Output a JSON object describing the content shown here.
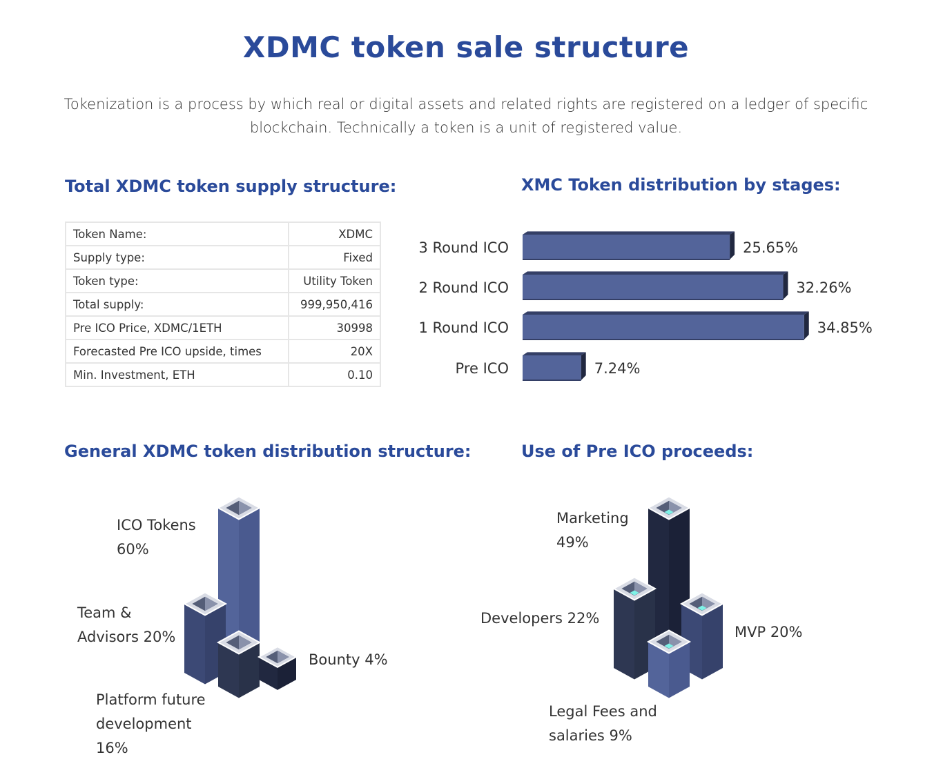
{
  "page": {
    "title": "XDMC token sale structure",
    "intro": "Tokenization is a process by which real or digital assets and related rights are registered on a ledger of specific blockchain. Technically a token is a unit of registered value."
  },
  "supply": {
    "heading": "Total XDMC token supply structure:",
    "rows": [
      {
        "key": "Token Name:",
        "value": "XDMC"
      },
      {
        "key": "Supply type:",
        "value": "Fixed"
      },
      {
        "key": "Token type:",
        "value": "Utility Token"
      },
      {
        "key": "Total supply:",
        "value": "999,950,416"
      },
      {
        "key": "Pre ICO Price, XDMC/1ETH",
        "value": "30998"
      },
      {
        "key": "Forecasted Pre ICO upside, times",
        "value": "20X"
      },
      {
        "key": "Min. Investment, ETH",
        "value": "0.10"
      }
    ]
  },
  "colors": {
    "heading": "#2a4a9a",
    "bar_face": "#53649a",
    "bar_dark": "#343f66",
    "mid_navy": "#3c4975",
    "dark_navy": "#2e3752",
    "darkest": "#212840",
    "cap_light": "#d9dce5",
    "accent_cyan": "#7ef2e6"
  },
  "chart_data": [
    {
      "type": "bar",
      "orientation": "horizontal",
      "title": "XMC Token distribution by stages:",
      "categories": [
        "3 Round ICO",
        "2 Round ICO",
        "1 Round ICO",
        "Pre ICO"
      ],
      "values": [
        25.65,
        32.26,
        34.85,
        7.24
      ],
      "value_labels": [
        "25.65%",
        "32.26%",
        "34.85%",
        "7.24%"
      ],
      "unit": "%"
    },
    {
      "type": "bar",
      "style": "isometric-columns",
      "title": "General XDMC token distribution structure:",
      "categories": [
        "ICO Tokens",
        "Team & Advisors",
        "Platform future development",
        "Bounty"
      ],
      "values": [
        60,
        20,
        16,
        4
      ],
      "labels": [
        [
          "ICO Tokens",
          "60%"
        ],
        [
          "Team &",
          "Advisors 20%"
        ],
        [
          "Platform future",
          "development",
          "16%"
        ],
        [
          "Bounty 4%"
        ]
      ]
    },
    {
      "type": "bar",
      "style": "isometric-columns",
      "title": "Use of Pre ICO proceeds:",
      "categories": [
        "Marketing",
        "Developers",
        "MVP",
        "Legal Fees and salaries"
      ],
      "values": [
        49,
        22,
        20,
        9
      ],
      "labels": [
        [
          "Marketing",
          "49%"
        ],
        [
          "Developers 22%"
        ],
        [
          "MVP 20%"
        ],
        [
          "Legal Fees and",
          "salaries 9%"
        ]
      ]
    }
  ]
}
